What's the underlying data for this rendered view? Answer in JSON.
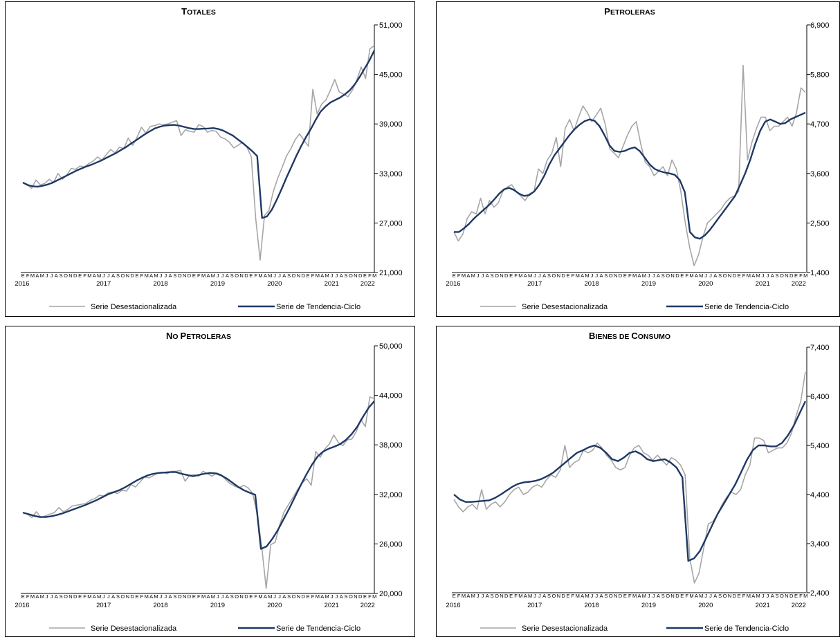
{
  "panels": [
    {
      "id": "totales",
      "title": {
        "first": "T",
        "rest": "OTALES"
      },
      "y_ticks": [
        "51,000",
        "45,000",
        "39,000",
        "33,000",
        "27,000",
        "21,000"
      ],
      "y_range": [
        21000,
        51000
      ],
      "legend": {
        "series1": "Serie Desestacionalizada",
        "series2": "Serie de Tendencia-Ciclo"
      }
    },
    {
      "id": "petroleras",
      "title": {
        "first": "P",
        "rest": "ETROLERAS"
      },
      "y_ticks": [
        "6,900",
        "5,800",
        "4,700",
        "3,600",
        "2,500",
        "1,400"
      ],
      "y_range": [
        1400,
        6900
      ],
      "legend": {
        "series1": "Serie Desestacionalizada",
        "series2": "Serie de Tendencia-Ciclo"
      }
    },
    {
      "id": "no-petroleras",
      "title": {
        "first": "N",
        "rest": "O ",
        "first2": "P",
        "rest2": "ETROLERAS"
      },
      "y_ticks": [
        "50,000",
        "44,000",
        "38,000",
        "32,000",
        "26,000",
        "20,000"
      ],
      "y_range": [
        20000,
        50000
      ],
      "legend": {
        "series1": "Serie Desestacionalizada",
        "series2": "Serie de Tendencia-Ciclo"
      }
    },
    {
      "id": "bienes-de-consumo",
      "title": {
        "first": "B",
        "rest": "IENES DE ",
        "first2": "C",
        "rest2": "ONSUMO"
      },
      "y_ticks": [
        "7,400",
        "6,400",
        "5,400",
        "4,400",
        "3,400",
        "2,400"
      ],
      "y_range": [
        2400,
        7400
      ],
      "legend": {
        "series1": "Serie Desestacionalizada",
        "series2": "Serie de Tendencia-Ciclo"
      }
    }
  ],
  "month_letters": [
    "E",
    "F",
    "M",
    "A",
    "M",
    "J",
    "J",
    "A",
    "S",
    "O",
    "N",
    "D"
  ],
  "year_labels": [
    "2016",
    "2017",
    "2018",
    "2019",
    "2020",
    "2021",
    "2022"
  ],
  "colors": {
    "seasonal": "#a6a6a6",
    "trend": "#1f3864",
    "axis": "#000000"
  },
  "chart_data": [
    {
      "type": "line",
      "title": "TOTALES",
      "x": "monthly, 2016-01 to 2022-03",
      "ylim": [
        21000,
        51000
      ],
      "series": [
        {
          "name": "Serie Desestacionalizada",
          "values": [
            31900,
            31600,
            31200,
            32200,
            31600,
            31800,
            32300,
            31900,
            33000,
            32300,
            32800,
            33600,
            33500,
            33900,
            33800,
            34200,
            34500,
            35000,
            34600,
            35300,
            35900,
            35500,
            36200,
            36000,
            37300,
            36400,
            37400,
            38600,
            37900,
            38700,
            38800,
            39000,
            38900,
            39000,
            39200,
            39400,
            37600,
            38300,
            38100,
            38000,
            38900,
            38700,
            38000,
            38200,
            38100,
            37400,
            37200,
            36800,
            36100,
            36400,
            36800,
            36200,
            35000,
            27600,
            22500,
            27900,
            28500,
            30800,
            32400,
            33700,
            35100,
            36000,
            37100,
            37800,
            37000,
            36300,
            43200,
            40200,
            41400,
            41900,
            43100,
            44400,
            42900,
            42600,
            42300,
            43100,
            44300,
            45900,
            44500,
            48100,
            48500
          ]
        },
        {
          "name": "Serie de Tendencia-Ciclo",
          "values": [
            31900,
            31600,
            31450,
            31400,
            31500,
            31650,
            31850,
            32150,
            32450,
            32750,
            33050,
            33350,
            33600,
            33850,
            34050,
            34300,
            34550,
            34850,
            35150,
            35450,
            35800,
            36150,
            36550,
            36950,
            37350,
            37750,
            38100,
            38450,
            38650,
            38800,
            38850,
            38880,
            38800,
            38650,
            38500,
            38400,
            38380,
            38420,
            38450,
            38500,
            38400,
            38200,
            37900,
            37600,
            37150,
            36700,
            36200,
            35700,
            35100,
            27600,
            27800,
            28600,
            29800,
            31100,
            32500,
            33800,
            35100,
            36300,
            37400,
            38400,
            39500,
            40500,
            41100,
            41600,
            41900,
            42200,
            42600,
            43100,
            43800,
            44700,
            45700,
            46700,
            47900
          ]
        }
      ]
    },
    {
      "type": "line",
      "title": "PETROLERAS",
      "x": "monthly, 2016-01 to 2022-03",
      "ylim": [
        1400,
        6900
      ],
      "series": [
        {
          "name": "Serie Desestacionalizada",
          "values": [
            2300,
            2100,
            2250,
            2600,
            2750,
            2700,
            3050,
            2700,
            3000,
            2850,
            2950,
            3200,
            3300,
            3350,
            3200,
            3100,
            3000,
            3150,
            3200,
            3700,
            3600,
            3900,
            4050,
            4400,
            3750,
            4600,
            4800,
            4550,
            4850,
            5100,
            4950,
            4750,
            4900,
            5050,
            4700,
            4150,
            4050,
            3950,
            4200,
            4450,
            4650,
            4750,
            4250,
            3850,
            3750,
            3550,
            3650,
            3750,
            3550,
            3900,
            3700,
            3200,
            2500,
            1950,
            1550,
            1800,
            2200,
            2500,
            2600,
            2700,
            2800,
            2950,
            3050,
            3100,
            3200,
            6000,
            3900,
            4300,
            4600,
            4850,
            4850,
            4550,
            4650,
            4650,
            4750,
            4850,
            4650,
            4950,
            5500,
            5400
          ]
        },
        {
          "name": "Serie de Tendencia-Ciclo",
          "values": [
            2300,
            2300,
            2380,
            2480,
            2600,
            2700,
            2800,
            2900,
            3020,
            3150,
            3250,
            3280,
            3230,
            3150,
            3100,
            3120,
            3200,
            3350,
            3550,
            3800,
            4000,
            4150,
            4300,
            4450,
            4580,
            4680,
            4760,
            4800,
            4770,
            4650,
            4450,
            4220,
            4100,
            4080,
            4100,
            4150,
            4180,
            4100,
            3950,
            3800,
            3700,
            3650,
            3620,
            3600,
            3570,
            3450,
            3180,
            2300,
            2180,
            2150,
            2230,
            2350,
            2500,
            2650,
            2800,
            2950,
            3100,
            3350,
            3600,
            3900,
            4250,
            4550,
            4750,
            4800,
            4750,
            4700,
            4720,
            4800,
            4850,
            4900,
            4950
          ]
        }
      ]
    },
    {
      "type": "line",
      "title": "NO PETROLERAS",
      "x": "monthly, 2016-01 to 2022-03",
      "ylim": [
        20000,
        50000
      ],
      "series": [
        {
          "name": "Serie Desestacionalizada",
          "values": [
            29800,
            29600,
            29200,
            29900,
            29200,
            29400,
            29600,
            29800,
            30400,
            29900,
            30200,
            30600,
            30700,
            30800,
            30900,
            31300,
            31500,
            31900,
            31800,
            32200,
            32300,
            32100,
            32500,
            32400,
            33200,
            32900,
            33500,
            34100,
            34000,
            34300,
            34600,
            34700,
            34500,
            34800,
            34800,
            34900,
            33600,
            34300,
            34400,
            34200,
            34800,
            34500,
            34200,
            34600,
            34400,
            33800,
            33300,
            33000,
            32800,
            33100,
            32800,
            32100,
            29600,
            25700,
            20600,
            25900,
            26200,
            28300,
            29900,
            30800,
            31700,
            32600,
            33400,
            33900,
            33100,
            37200,
            36500,
            37500,
            38100,
            39200,
            38300,
            37900,
            38600,
            38700,
            39600,
            41100,
            40200,
            43800,
            43600
          ]
        },
        {
          "name": "Serie de Tendencia-Ciclo",
          "values": [
            29800,
            29600,
            29400,
            29250,
            29250,
            29350,
            29500,
            29700,
            29950,
            30200,
            30450,
            30700,
            31000,
            31300,
            31650,
            32000,
            32250,
            32500,
            32850,
            33250,
            33650,
            34000,
            34300,
            34500,
            34600,
            34650,
            34700,
            34700,
            34500,
            34350,
            34200,
            34350,
            34500,
            34600,
            34550,
            34300,
            33900,
            33400,
            32900,
            32500,
            32200,
            31950,
            25400,
            25700,
            26600,
            27700,
            29000,
            30300,
            31700,
            33100,
            34400,
            35600,
            36600,
            37200,
            37550,
            37800,
            38100,
            38600,
            39300,
            40200,
            41400,
            42500,
            43300
          ]
        }
      ]
    },
    {
      "type": "line",
      "title": "BIENES DE CONSUMO",
      "x": "monthly, 2016-01 to 2022-03",
      "ylim": [
        2400,
        7400
      ],
      "series": [
        {
          "name": "Serie Desestacionalizada",
          "values": [
            4300,
            4150,
            4050,
            4150,
            4200,
            4100,
            4500,
            4100,
            4200,
            4250,
            4150,
            4250,
            4400,
            4500,
            4550,
            4400,
            4450,
            4550,
            4600,
            4550,
            4700,
            4800,
            4750,
            4900,
            5400,
            4950,
            5050,
            5100,
            5300,
            5250,
            5300,
            5450,
            5350,
            5200,
            5100,
            4950,
            4900,
            4950,
            5200,
            5350,
            5400,
            5250,
            5200,
            5100,
            5200,
            5100,
            5000,
            5150,
            5100,
            5000,
            4800,
            3100,
            2600,
            2800,
            3300,
            3800,
            3850,
            4000,
            4200,
            4350,
            4450,
            4400,
            4500,
            4800,
            5000,
            5550,
            5550,
            5500,
            5250,
            5300,
            5350,
            5350,
            5450,
            5650,
            6000,
            6300,
            6900
          ]
        },
        {
          "name": "Serie de Tendencia-Ciclo",
          "values": [
            4400,
            4300,
            4250,
            4250,
            4260,
            4270,
            4280,
            4330,
            4400,
            4480,
            4560,
            4620,
            4650,
            4660,
            4680,
            4720,
            4780,
            4850,
            4950,
            5050,
            5150,
            5250,
            5300,
            5360,
            5400,
            5350,
            5250,
            5120,
            5080,
            5150,
            5250,
            5280,
            5220,
            5120,
            5080,
            5100,
            5120,
            5050,
            4950,
            4750,
            3050,
            3100,
            3250,
            3500,
            3750,
            4000,
            4200,
            4400,
            4600,
            4850,
            5100,
            5300,
            5400,
            5400,
            5380,
            5380,
            5450,
            5600,
            5800,
            6050,
            6300
          ]
        }
      ]
    }
  ]
}
